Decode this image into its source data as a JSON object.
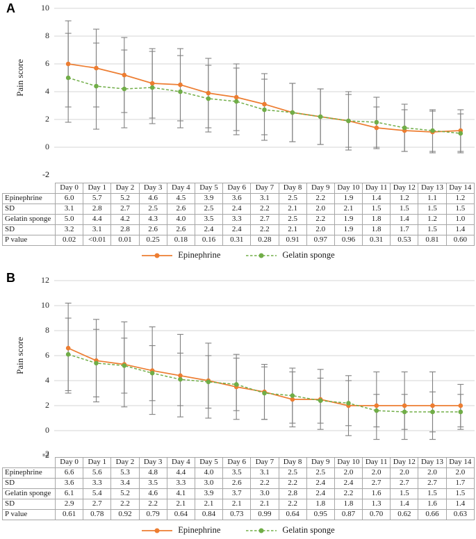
{
  "figure": {
    "styles": {
      "error_bar_color": "#808080",
      "gridline_color": "#d6d6d6",
      "table_border_color": "#a6a6a6",
      "epinephrine_color": "#ED7D31",
      "gelatin_color": "#70AD47"
    }
  },
  "chart_data": [
    {
      "type": "line",
      "panel_label": "A",
      "title": "",
      "xlabel": "",
      "ylabel": "Pain score",
      "ylim": [
        -2,
        10
      ],
      "yticks": [
        10,
        8,
        6,
        4,
        2,
        0,
        -2
      ],
      "grid": true,
      "legend_position": "bottom",
      "error_bars": "plus-minus SD",
      "categories": [
        "Day 0",
        "Day 1",
        "Day 2",
        "Day 3",
        "Day 4",
        "Day 5",
        "Day 6",
        "Day 7",
        "Day 8",
        "Day 9",
        "Day 10",
        "Day 11",
        "Day 12",
        "Day 13",
        "Day 14"
      ],
      "series": [
        {
          "name": "Epinephrine",
          "color": "#ED7D31",
          "line_style": "solid",
          "values": [
            6.0,
            5.7,
            5.2,
            4.6,
            4.5,
            3.9,
            3.6,
            3.1,
            2.5,
            2.2,
            1.9,
            1.4,
            1.2,
            1.1,
            1.2
          ],
          "sd": [
            3.1,
            2.8,
            2.7,
            2.5,
            2.6,
            2.5,
            2.4,
            2.2,
            2.1,
            2.0,
            2.1,
            1.5,
            1.5,
            1.5,
            1.5
          ]
        },
        {
          "name": "Gelatin sponge",
          "color": "#70AD47",
          "line_style": "dashed",
          "values": [
            5.0,
            4.4,
            4.2,
            4.3,
            4.0,
            3.5,
            3.3,
            2.7,
            2.5,
            2.2,
            1.9,
            1.8,
            1.4,
            1.2,
            1.0
          ],
          "sd": [
            3.2,
            3.1,
            2.8,
            2.6,
            2.6,
            2.4,
            2.4,
            2.2,
            2.1,
            2.0,
            1.9,
            1.8,
            1.7,
            1.5,
            1.4
          ]
        }
      ],
      "p_values": [
        "0.02",
        "<0.01",
        "0.01",
        "0.25",
        "0.18",
        "0.16",
        "0.31",
        "0.28",
        "0.91",
        "0.97",
        "0.96",
        "0.31",
        "0.53",
        "0.81",
        "0.60"
      ],
      "table_row_labels": [
        "Epinephrine",
        "SD",
        "Gelatin sponge",
        "SD",
        "P value"
      ]
    },
    {
      "type": "line",
      "panel_label": "B",
      "title": "",
      "xlabel": "",
      "ylabel": "Pain score",
      "ylim": [
        -2,
        12
      ],
      "yticks": [
        12,
        10,
        8,
        6,
        4,
        2,
        0,
        -2
      ],
      "grid": true,
      "legend_position": "bottom",
      "error_bars": "plus-minus SD",
      "categories": [
        "Day 0",
        "Day 1",
        "Day 2",
        "Day 3",
        "Day 4",
        "Day 5",
        "Day 6",
        "Day 7",
        "Day 8",
        "Day 9",
        "Day 10",
        "Day 11",
        "Day 12",
        "Day 13",
        "Day 14"
      ],
      "series": [
        {
          "name": "Epinephrine",
          "color": "#ED7D31",
          "line_style": "solid",
          "values": [
            6.6,
            5.6,
            5.3,
            4.8,
            4.4,
            4.0,
            3.5,
            3.1,
            2.5,
            2.5,
            2.0,
            2.0,
            2.0,
            2.0,
            2.0
          ],
          "sd": [
            3.6,
            3.3,
            3.4,
            3.5,
            3.3,
            3.0,
            2.6,
            2.2,
            2.2,
            2.4,
            2.4,
            2.7,
            2.7,
            2.7,
            1.7
          ]
        },
        {
          "name": "Gelatin sponge",
          "color": "#70AD47",
          "line_style": "dashed",
          "values": [
            6.1,
            5.4,
            5.2,
            4.6,
            4.1,
            3.9,
            3.7,
            3.0,
            2.8,
            2.4,
            2.2,
            1.6,
            1.5,
            1.5,
            1.5
          ],
          "sd": [
            2.9,
            2.7,
            2.2,
            2.2,
            2.1,
            2.1,
            2.1,
            2.1,
            2.2,
            1.8,
            1.8,
            1.3,
            1.4,
            1.6,
            1.4
          ]
        }
      ],
      "p_values": [
        "0.61",
        "0.78",
        "0.92",
        "0.79",
        "0.64",
        "0.84",
        "0.73",
        "0.99",
        "0.64",
        "0.95",
        "0.87",
        "0.70",
        "0.62",
        "0.66",
        "0.63"
      ],
      "table_row_labels": [
        "Epinephrine",
        "SD",
        "Gelatin sponge",
        "SD",
        "P value"
      ]
    }
  ]
}
